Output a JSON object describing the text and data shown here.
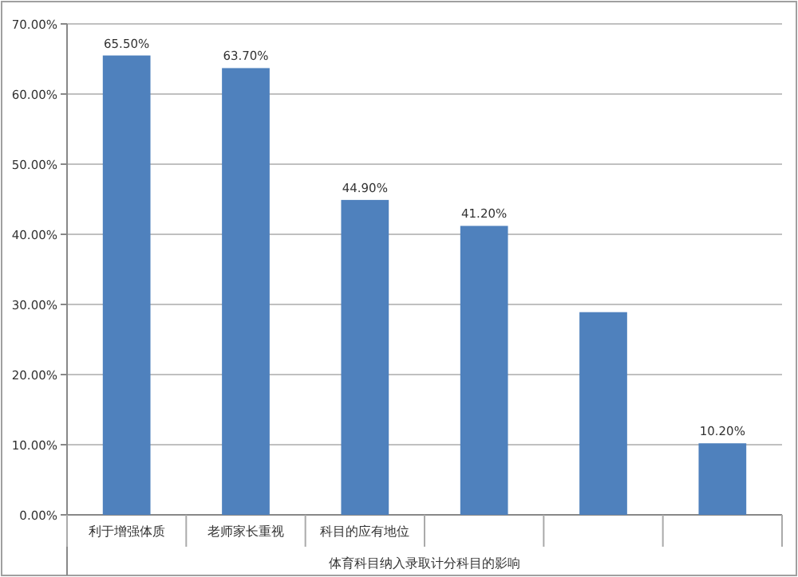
{
  "chart_data": {
    "type": "bar",
    "xlabel": "体育科目纳入录取计分科目的影响",
    "categories": [
      "利于增强体质",
      "老师家长重视",
      "科目的应有地位",
      null,
      null,
      null
    ],
    "values": [
      65.5,
      63.7,
      44.9,
      41.2,
      28.9,
      10.2
    ],
    "value_labels": [
      "65.50%",
      "63.70%",
      "44.90%",
      "41.20%",
      null,
      "10.20%"
    ],
    "color": "#4f81bd",
    "grid": "y",
    "ylim": [
      0,
      70
    ],
    "yticks": [
      {
        "value": 0,
        "label": "0.00%"
      },
      {
        "value": 10,
        "label": "10.00%"
      },
      {
        "value": 20,
        "label": "20.00%"
      },
      {
        "value": 30,
        "label": "30.00%"
      },
      {
        "value": 40,
        "label": "40.00%"
      },
      {
        "value": 50,
        "label": "50.00%"
      },
      {
        "value": 60,
        "label": "60.00%"
      },
      {
        "value": 70,
        "label": "70.00%"
      }
    ]
  }
}
